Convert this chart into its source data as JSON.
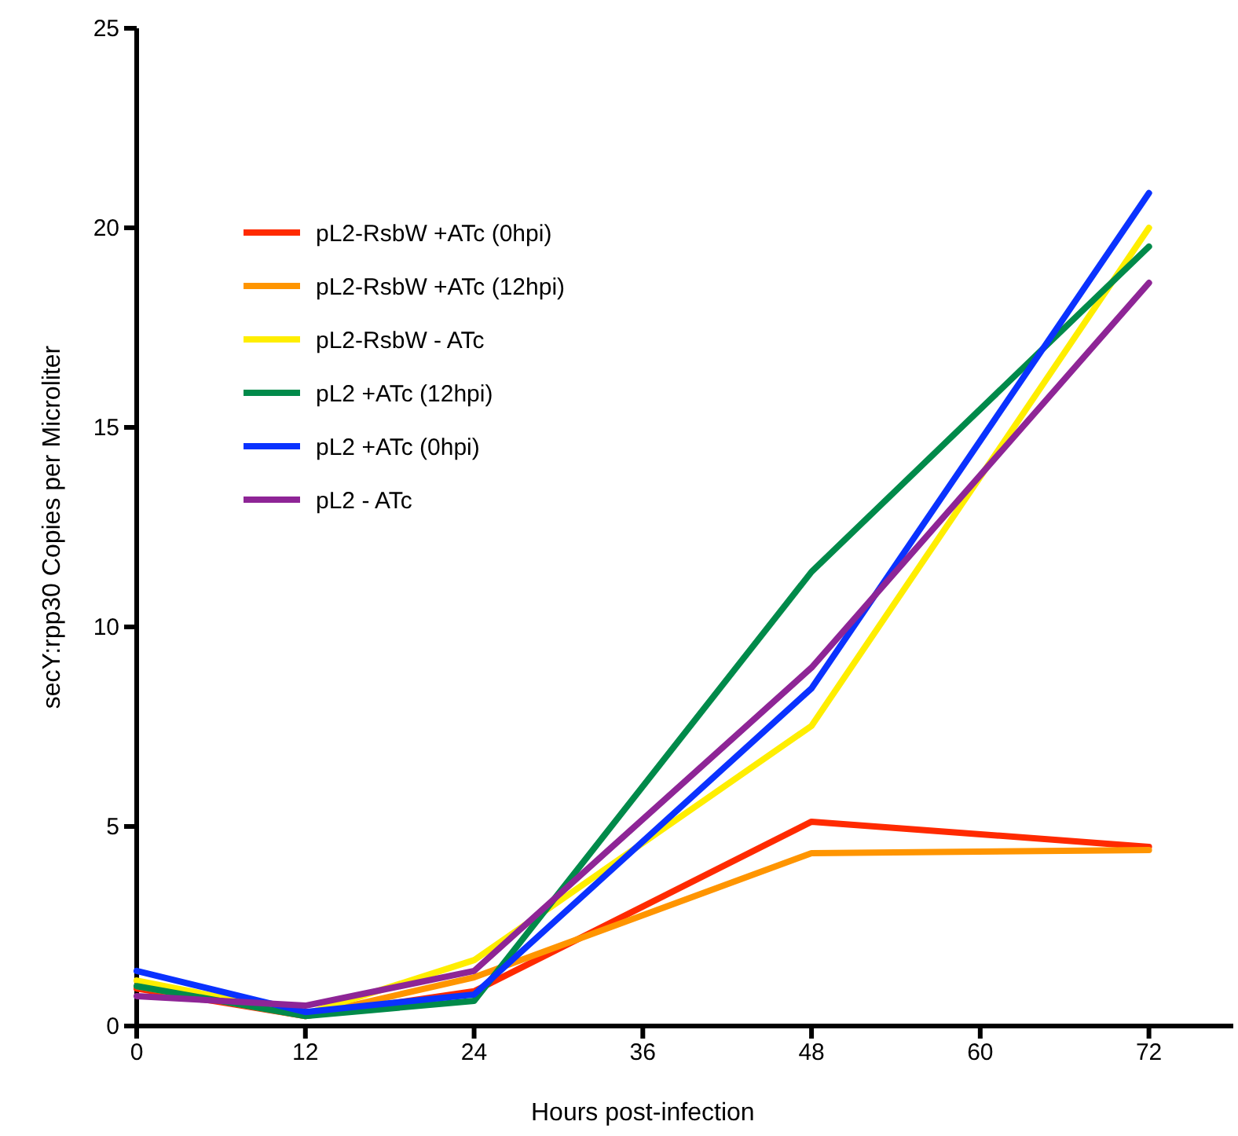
{
  "chart_data": {
    "type": "line",
    "xlabel": "Hours post-infection",
    "ylabel": "secY:rpp30 Copies per Microliter",
    "x": [
      0,
      12,
      24,
      48,
      72
    ],
    "xlim": [
      0,
      78
    ],
    "xticks": [
      0,
      12,
      24,
      36,
      48,
      60,
      72
    ],
    "ylim": [
      0,
      25
    ],
    "yticks": [
      0,
      5,
      10,
      15,
      20,
      25
    ],
    "grid": false,
    "legend": "top left",
    "marker": "none",
    "line_style": "solid",
    "series": [
      {
        "name": "pL2-RsbW +ATc (0hpi)",
        "color": "#ff2a00",
        "values": [
          0.94,
          0.25,
          0.87,
          5.12,
          4.49
        ]
      },
      {
        "name": "pL2-RsbW +ATc (12hpi)",
        "color": "#ff9500",
        "values": [
          1.0,
          0.25,
          1.22,
          4.33,
          4.41
        ]
      },
      {
        "name": "pL2-RsbW - ATc",
        "color": "#ffee00",
        "values": [
          1.14,
          0.3,
          1.65,
          7.52,
          20.0
        ]
      },
      {
        "name": "pL2 +ATc (12hpi)",
        "color": "#008a4a",
        "values": [
          1.0,
          0.25,
          0.63,
          11.38,
          19.53
        ]
      },
      {
        "name": "pL2 +ATc (0hpi)",
        "color": "#0a32ff",
        "values": [
          1.38,
          0.35,
          0.79,
          8.46,
          20.87
        ]
      },
      {
        "name": "pL2 - ATc",
        "color": "#8e2596",
        "values": [
          0.75,
          0.51,
          1.38,
          8.98,
          18.62
        ]
      }
    ]
  }
}
